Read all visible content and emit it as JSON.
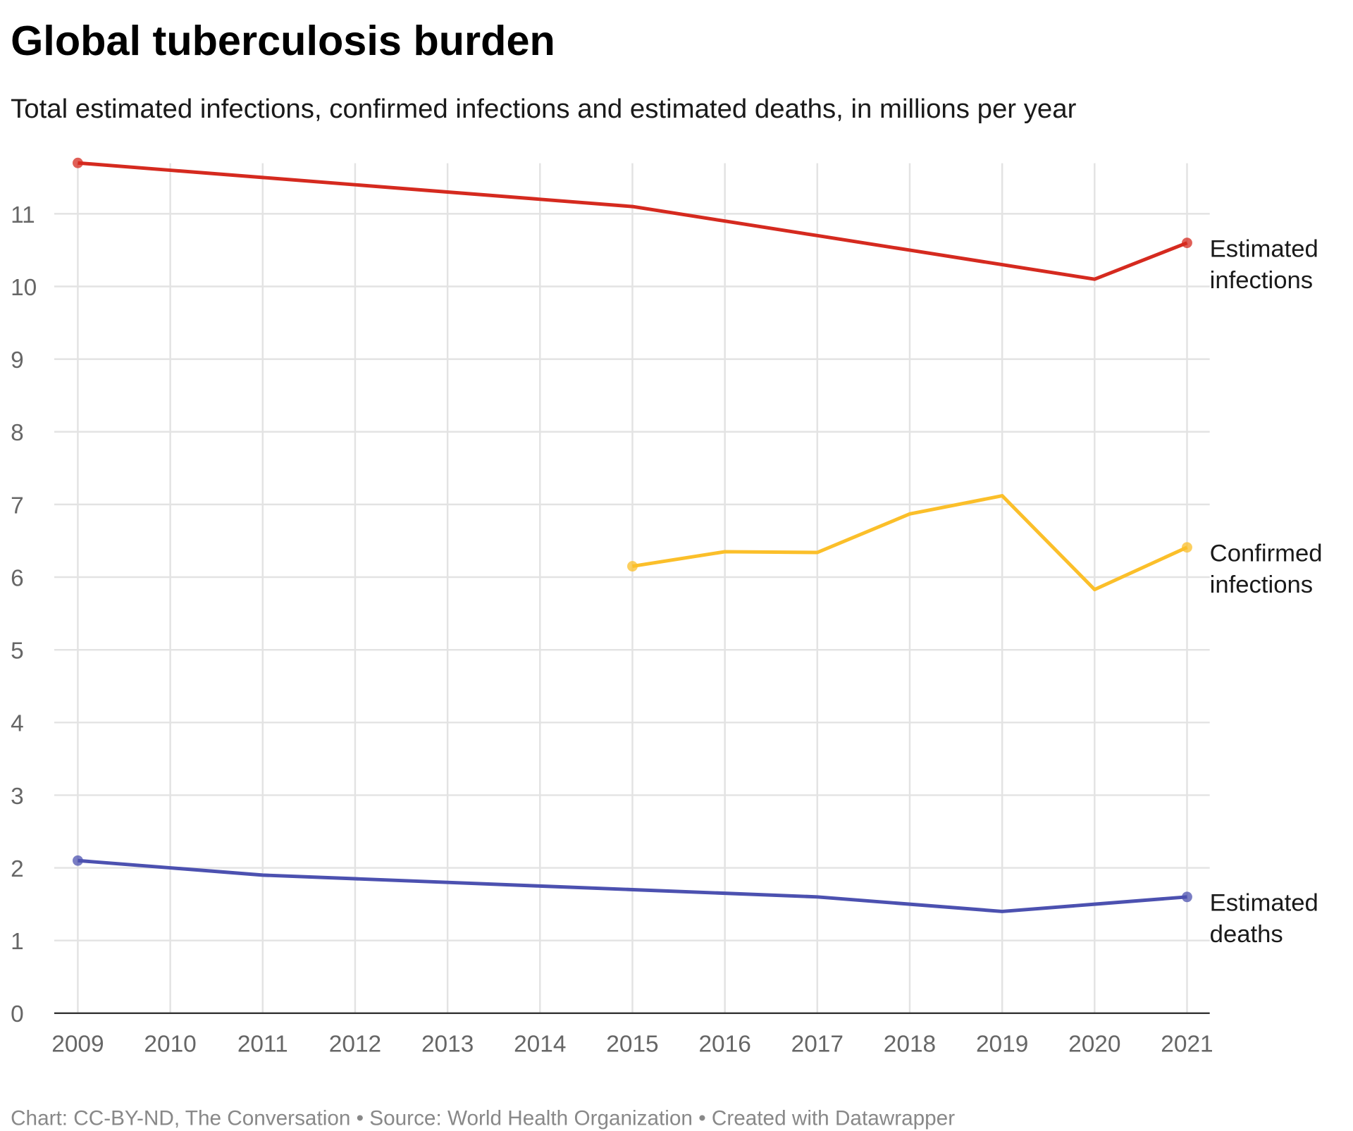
{
  "chart_data": {
    "type": "line",
    "title": "Global tuberculosis burden",
    "subtitle": "Total estimated infections, confirmed infections and estimated deaths, in millions per year",
    "xlabel": "",
    "ylabel": "",
    "x": [
      2009,
      2010,
      2011,
      2012,
      2013,
      2014,
      2015,
      2016,
      2017,
      2018,
      2019,
      2020,
      2021
    ],
    "xticks": [
      "2009",
      "2010",
      "2011",
      "2012",
      "2013",
      "2014",
      "2015",
      "2016",
      "2017",
      "2018",
      "2019",
      "2020",
      "2021"
    ],
    "ylim": [
      0,
      11.7
    ],
    "yticks": [
      "0",
      "1",
      "2",
      "3",
      "4",
      "5",
      "6",
      "7",
      "8",
      "9",
      "10",
      "11"
    ],
    "grid": true,
    "legend": "direct labels at right end of lines",
    "series": [
      {
        "name": "Estimated infections",
        "label_lines": [
          "Estimated",
          "infections"
        ],
        "color": "#d52a1f",
        "values": [
          11.7,
          11.6,
          11.5,
          11.4,
          11.3,
          11.2,
          11.1,
          10.9,
          10.7,
          10.5,
          10.3,
          10.1,
          10.6
        ]
      },
      {
        "name": "Confirmed infections",
        "label_lines": [
          "Confirmed",
          "infections"
        ],
        "color": "#fbbf2a",
        "values": [
          null,
          null,
          null,
          null,
          null,
          null,
          6.15,
          6.35,
          6.34,
          6.87,
          7.12,
          5.83,
          6.41
        ]
      },
      {
        "name": "Estimated deaths",
        "label_lines": [
          "Estimated",
          "deaths"
        ],
        "color": "#4c51b0",
        "values": [
          2.1,
          2.0,
          1.9,
          1.85,
          1.8,
          1.75,
          1.7,
          1.65,
          1.6,
          1.5,
          1.4,
          1.5,
          1.6
        ]
      }
    ],
    "footer": "Chart: CC-BY-ND, The Conversation • Source: World Health Organization • Created with Datawrapper"
  }
}
